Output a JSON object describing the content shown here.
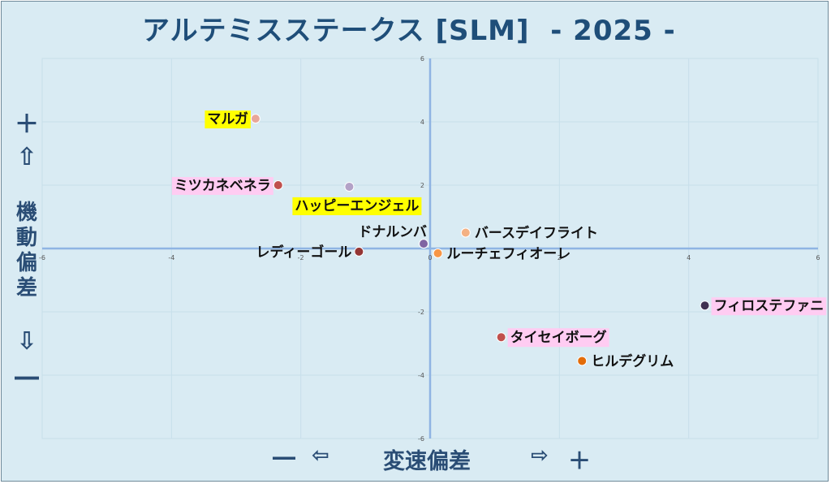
{
  "title": "アルテミスステークス [SLM]  - 2025 -",
  "y_axis_label": {
    "plus": "＋",
    "up_arrow": "⇧",
    "text": [
      "機",
      "動",
      "偏",
      "差"
    ],
    "down_arrow": "⇩",
    "minus": "―"
  },
  "x_axis_label": {
    "minus": "―",
    "left_arrow": "⇦",
    "text": "変速偏差",
    "right_arrow": "⇨",
    "plus": "＋"
  },
  "chart_data": {
    "type": "scatter",
    "title": "アルテミスステークス [SLM]  - 2025 -",
    "xlabel": "変速偏差",
    "ylabel": "機動偏差",
    "xlim": [
      -6,
      6
    ],
    "ylim": [
      -6,
      6
    ],
    "xticks": [
      -6,
      -4,
      -2,
      0,
      2,
      4,
      6
    ],
    "yticks": [
      -6,
      -4,
      -2,
      2,
      4,
      6
    ],
    "grid": true,
    "points": [
      {
        "name": "マルガ",
        "x": -2.7,
        "y": 4.1,
        "color": "#e8a79a",
        "highlight": "#ffff00"
      },
      {
        "name": "ミツカネベネラ",
        "x": -2.35,
        "y": 2.0,
        "color": "#c0504d",
        "highlight": "#ffccf2"
      },
      {
        "name": "ハッピーエンジェル",
        "x": -1.25,
        "y": 1.95,
        "color": "#b3a2c7",
        "highlight": "#ffff00"
      },
      {
        "name": "バースデイフライト",
        "x": 0.55,
        "y": 0.5,
        "color": "#f4b183",
        "highlight": ""
      },
      {
        "name": "ドナルンバ",
        "x": -0.1,
        "y": 0.15,
        "color": "#8064a2",
        "highlight": ""
      },
      {
        "name": "レディーゴール",
        "x": -1.1,
        "y": -0.1,
        "color": "#943634",
        "highlight": ""
      },
      {
        "name": "ルーチェフィオーレ",
        "x": 0.12,
        "y": -0.15,
        "color": "#f79646",
        "highlight": ""
      },
      {
        "name": "フィロステファニ",
        "x": 4.25,
        "y": -1.8,
        "color": "#403151",
        "highlight": "#ffccf2"
      },
      {
        "name": "タイセイボーグ",
        "x": 1.1,
        "y": -2.8,
        "color": "#c0504d",
        "highlight": "#ffccf2"
      },
      {
        "name": "ヒルデグリム",
        "x": 2.35,
        "y": -3.55,
        "color": "#e36c09",
        "highlight": ""
      }
    ]
  }
}
